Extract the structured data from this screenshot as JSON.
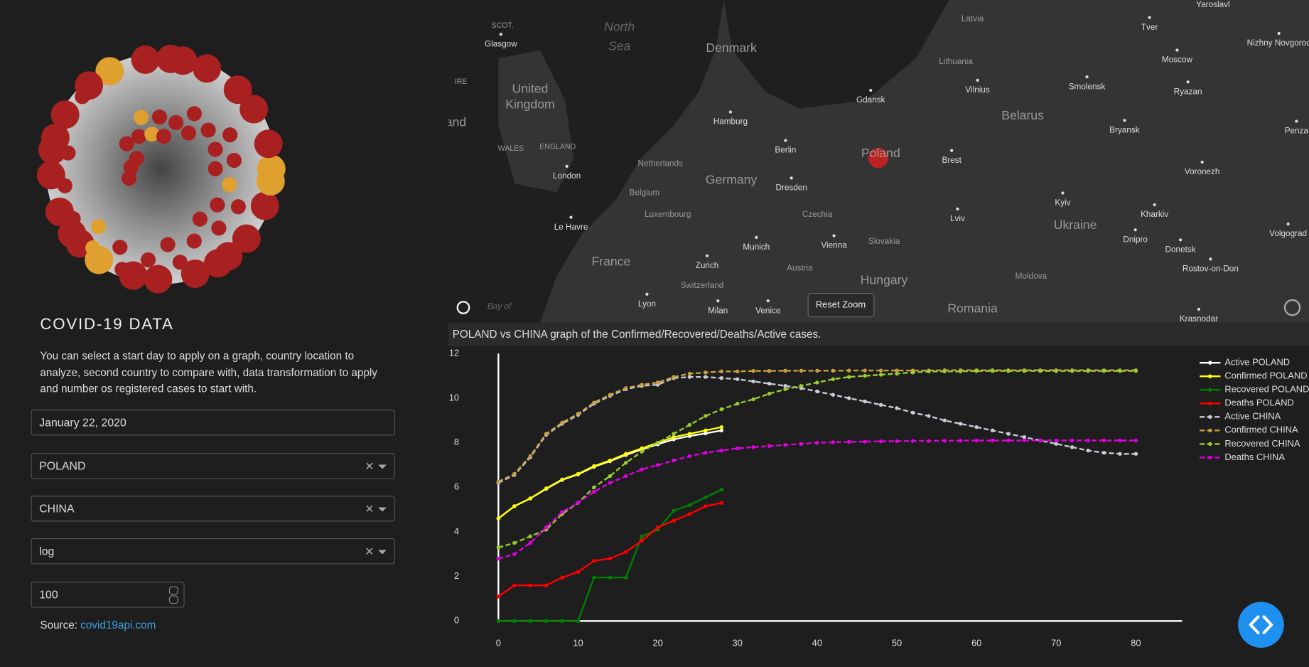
{
  "sidebar": {
    "title": "COVID-19 DATA",
    "description": "You can select a start day to apply on a graph, country location to analyze, second country to compare with, data transformation to apply and number os registered cases to start with.",
    "date": "January 22, 2020",
    "country1": "POLAND",
    "country2": "CHINA",
    "transform": "log",
    "cases": 100,
    "source_label": "Source:",
    "source_link": "covid19api.com"
  },
  "map": {
    "reset_button": "Reset Zoom",
    "labels": [
      "SCOT.",
      "Glasgow",
      "North",
      "Sea",
      "Denmark",
      "IRE",
      "United",
      "Kingdom",
      "Lithuania",
      "Latvia",
      "Vilnius",
      "Smolensk",
      "Moscow",
      "Tver",
      "Yaroslavl",
      "Nizhny Novgorod",
      "Ryazan",
      "Gdansk",
      "Hamburg",
      "Belarus",
      "Bryansk",
      "Penza",
      "WALES",
      "ENGLAND",
      "Berlin",
      "Poland",
      "Brest",
      "Netherlands",
      "Germany",
      "London",
      "Voronezh",
      "Dresden",
      "Belgium",
      "Kyiv",
      "Luxembourg",
      "Czechia",
      "Lviv",
      "Kharkiv",
      "Ukraine",
      "Le Havre",
      "Volgograd",
      "Dnipro",
      "Slovakia",
      "Vienna",
      "Munich",
      "Donetsk",
      "France",
      "Zurich",
      "Austria",
      "Rostov-on-Don",
      "Moldova",
      "Hungary",
      "Switzerland",
      "Lyon",
      "Milan",
      "Venice",
      "Romania",
      "Bay of",
      "Krasnodar",
      "and"
    ]
  },
  "chart_data": {
    "type": "line",
    "title": "POLAND vs CHINA graph of the Confirmed/Recovered/Deaths/Active cases.",
    "x": [
      0,
      2,
      4,
      6,
      8,
      10,
      12,
      14,
      16,
      18,
      20,
      22,
      24,
      26,
      28,
      30,
      32,
      34,
      36,
      38,
      40,
      42,
      44,
      46,
      48,
      50,
      52,
      54,
      56,
      58,
      60,
      62,
      64,
      66,
      68,
      70,
      72,
      74,
      76,
      78,
      80
    ],
    "xlim": [
      0,
      85.8
    ],
    "xticks": [
      0,
      10,
      20,
      30,
      40,
      50,
      60,
      70,
      80
    ],
    "ylim": [
      0,
      12.3
    ],
    "yticks": [
      0,
      2,
      4,
      6,
      8,
      10,
      12
    ],
    "grid": false,
    "legend": "top-right",
    "series": [
      {
        "name": "Active POLAND",
        "color": "#ffffff",
        "dash": "solid",
        "values": [
          4.6,
          5.15,
          5.5,
          5.93,
          6.33,
          6.58,
          6.92,
          7.17,
          7.45,
          7.7,
          7.93,
          8.15,
          8.3,
          8.42,
          8.55,
          null,
          null,
          null,
          null,
          null,
          null,
          null,
          null,
          null,
          null,
          null,
          null,
          null,
          null,
          null,
          null,
          null,
          null,
          null,
          null,
          null,
          null,
          null,
          null,
          null,
          null
        ]
      },
      {
        "name": "Confirmed POLAND",
        "color": "#ffff00",
        "dash": "solid",
        "values": [
          4.6,
          5.15,
          5.5,
          5.95,
          6.35,
          6.6,
          6.95,
          7.2,
          7.5,
          7.75,
          8.0,
          8.25,
          8.4,
          8.55,
          8.7,
          null,
          null,
          null,
          null,
          null,
          null,
          null,
          null,
          null,
          null,
          null,
          null,
          null,
          null,
          null,
          null,
          null,
          null,
          null,
          null,
          null,
          null,
          null,
          null,
          null,
          null
        ]
      },
      {
        "name": "Recovered POLAND",
        "color": "#008000",
        "dash": "solid",
        "values": [
          0,
          0,
          0,
          0,
          0,
          0,
          1.95,
          1.95,
          1.95,
          3.8,
          4.1,
          4.95,
          5.2,
          5.55,
          5.9,
          null,
          null,
          null,
          null,
          null,
          null,
          null,
          null,
          null,
          null,
          null,
          null,
          null,
          null,
          null,
          null,
          null,
          null,
          null,
          null,
          null,
          null,
          null,
          null,
          null,
          null
        ]
      },
      {
        "name": "Deaths POLAND",
        "color": "#ff0000",
        "dash": "solid",
        "values": [
          1.1,
          1.6,
          1.6,
          1.6,
          1.95,
          2.2,
          2.7,
          2.8,
          3.1,
          3.6,
          4.2,
          4.5,
          4.8,
          5.15,
          5.3,
          null,
          null,
          null,
          null,
          null,
          null,
          null,
          null,
          null,
          null,
          null,
          null,
          null,
          null,
          null,
          null,
          null,
          null,
          null,
          null,
          null,
          null,
          null,
          null,
          null,
          null
        ]
      },
      {
        "name": "Active CHINA",
        "color": "#c8cdd8",
        "dash": "dash",
        "values": [
          6.2,
          6.55,
          7.35,
          8.35,
          8.85,
          9.25,
          9.75,
          10.1,
          10.4,
          10.55,
          10.6,
          10.9,
          10.95,
          10.95,
          10.9,
          10.85,
          10.75,
          10.65,
          10.55,
          10.45,
          10.3,
          10.15,
          10.0,
          9.85,
          9.7,
          9.55,
          9.35,
          9.2,
          9.0,
          8.85,
          8.7,
          8.55,
          8.4,
          8.25,
          8.1,
          7.95,
          7.8,
          7.65,
          7.55,
          7.5,
          7.5
        ]
      },
      {
        "name": "Confirmed CHINA",
        "color": "#c8a040",
        "dash": "dash",
        "values": [
          6.25,
          6.6,
          7.4,
          8.4,
          8.9,
          9.3,
          9.8,
          10.15,
          10.45,
          10.6,
          10.7,
          10.95,
          11.1,
          11.15,
          11.2,
          11.2,
          11.22,
          11.22,
          11.23,
          11.23,
          11.23,
          11.23,
          11.24,
          11.24,
          11.24,
          11.24,
          11.24,
          11.24,
          11.25,
          11.25,
          11.25,
          11.25,
          11.25,
          11.25,
          11.25,
          11.25,
          11.25,
          11.25,
          11.25,
          11.25,
          11.25
        ]
      },
      {
        "name": "Recovered CHINA",
        "color": "#9acd32",
        "dash": "dash",
        "values": [
          3.3,
          3.5,
          3.8,
          4.1,
          4.8,
          5.3,
          6.0,
          6.5,
          7.1,
          7.6,
          8.0,
          8.4,
          8.8,
          9.2,
          9.5,
          9.75,
          9.95,
          10.2,
          10.4,
          10.55,
          10.7,
          10.85,
          10.95,
          11.0,
          11.05,
          11.1,
          11.15,
          11.2,
          11.2,
          11.2,
          11.22,
          11.22,
          11.22,
          11.22,
          11.22,
          11.22,
          11.22,
          11.22,
          11.22,
          11.22,
          11.22
        ]
      },
      {
        "name": "Deaths CHINA",
        "color": "#e000e0",
        "dash": "dash",
        "values": [
          2.8,
          3.0,
          3.5,
          4.2,
          4.9,
          5.3,
          5.8,
          6.2,
          6.5,
          6.8,
          7.0,
          7.2,
          7.4,
          7.55,
          7.65,
          7.75,
          7.8,
          7.85,
          7.9,
          7.95,
          8.0,
          8.02,
          8.04,
          8.05,
          8.06,
          8.07,
          8.08,
          8.08,
          8.09,
          8.09,
          8.1,
          8.1,
          8.1,
          8.1,
          8.1,
          8.1,
          8.1,
          8.1,
          8.1,
          8.1,
          8.1
        ]
      }
    ]
  }
}
